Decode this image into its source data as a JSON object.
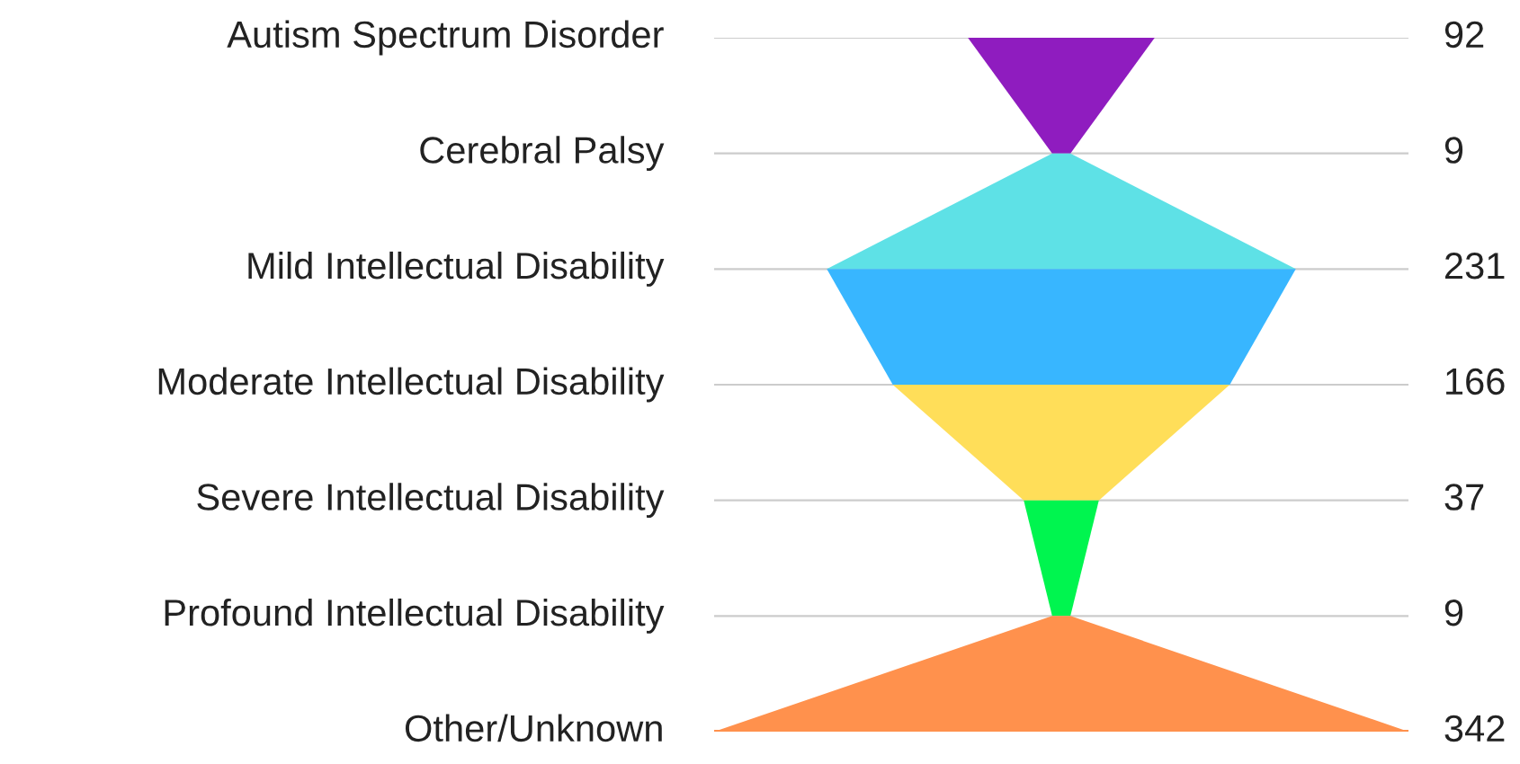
{
  "chart_data": {
    "type": "other",
    "categories": [
      "Autism Spectrum Disorder",
      "Cerebral Palsy",
      "Mild Intellectual Disability",
      "Moderate Intellectual Disability",
      "Severe Intellectual Disability",
      "Profound Intellectual Disability",
      "Other/Unknown"
    ],
    "values": [
      92,
      9,
      231,
      166,
      37,
      9,
      342
    ],
    "colors": [
      "#8f1cbf",
      "#5ee1e6",
      "#38b6ff",
      "#ffde59",
      "#00f54f",
      "#ff914d",
      "#ff914d"
    ],
    "data_labels": true
  }
}
